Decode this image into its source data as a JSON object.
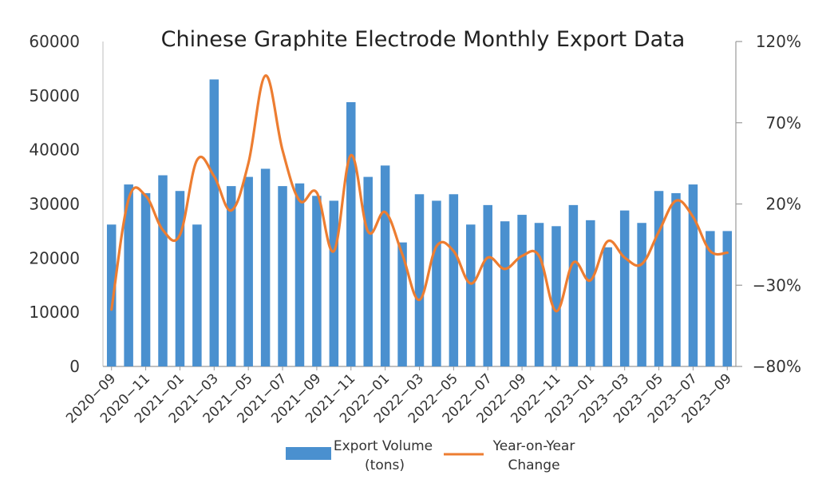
{
  "chart_data": {
    "type": "bar+line",
    "title": "Chinese Graphite Electrode Monthly Export Data",
    "categories": [
      "2020-09",
      "2020-10",
      "2020-11",
      "2020-12",
      "2021-01",
      "2021-02",
      "2021-03",
      "2021-04",
      "2021-05",
      "2021-06",
      "2021-07",
      "2021-08",
      "2021-09",
      "2021-10",
      "2021-11",
      "2021-12",
      "2022-01",
      "2022-02",
      "2022-03",
      "2022-04",
      "2022-05",
      "2022-06",
      "2022-07",
      "2022-08",
      "2022-09",
      "2022-10",
      "2022-11",
      "2022-12",
      "2023-01",
      "2023-02",
      "2023-03",
      "2023-04",
      "2023-05",
      "2023-06",
      "2023-07",
      "2023-08",
      "2023-09"
    ],
    "x_tick_labels": [
      "2020−09",
      "2020−11",
      "2021−01",
      "2021−03",
      "2021−05",
      "2021−07",
      "2021−09",
      "2021−11",
      "2022−01",
      "2022−03",
      "2022−05",
      "2022−07",
      "2022−09",
      "2022−11",
      "2023−01",
      "2023−03",
      "2023−05",
      "2023−07",
      "2023−09"
    ],
    "series": [
      {
        "name": "Export Volume (tons)",
        "type": "bar",
        "axis": "left",
        "color": "#4a90cf",
        "values": [
          26200,
          33600,
          32000,
          35300,
          32400,
          26200,
          53000,
          33300,
          35000,
          36500,
          33300,
          33800,
          31500,
          30600,
          48800,
          35000,
          37100,
          22900,
          31800,
          30600,
          31800,
          26200,
          29800,
          26800,
          28000,
          26500,
          25900,
          29800,
          27000,
          22000,
          28800,
          26500,
          32400,
          32000,
          33600,
          25000,
          25000
        ]
      },
      {
        "name": "Year-on-Year Change",
        "type": "line",
        "axis": "right",
        "color": "#ed7d31",
        "values": [
          -45,
          23,
          25,
          4,
          1,
          47,
          37,
          16,
          45,
          99,
          53,
          22,
          27,
          -9,
          50,
          3,
          15,
          -11,
          -39,
          -6,
          -9,
          -29,
          -13,
          -20,
          -12,
          -12,
          -46,
          -16,
          -27,
          -3,
          -13,
          -17,
          3,
          22,
          12,
          -9,
          -10
        ]
      }
    ],
    "y_left": {
      "ylim": [
        0,
        60000
      ],
      "ticks": [
        "0",
        "10000",
        "20000",
        "30000",
        "40000",
        "50000",
        "60000"
      ]
    },
    "y_right": {
      "ylim": [
        -80,
        120
      ],
      "ticks": [
        "−80%",
        "−30%",
        "20%",
        "70%",
        "120%"
      ],
      "tick_values": [
        -80,
        -30,
        20,
        70,
        120
      ]
    },
    "legend": {
      "position": "bottom",
      "bar_label_lines": [
        "Export Volume",
        "(tons)"
      ],
      "line_label_lines": [
        "Year-on-Year",
        "Change"
      ]
    },
    "grid": false
  }
}
